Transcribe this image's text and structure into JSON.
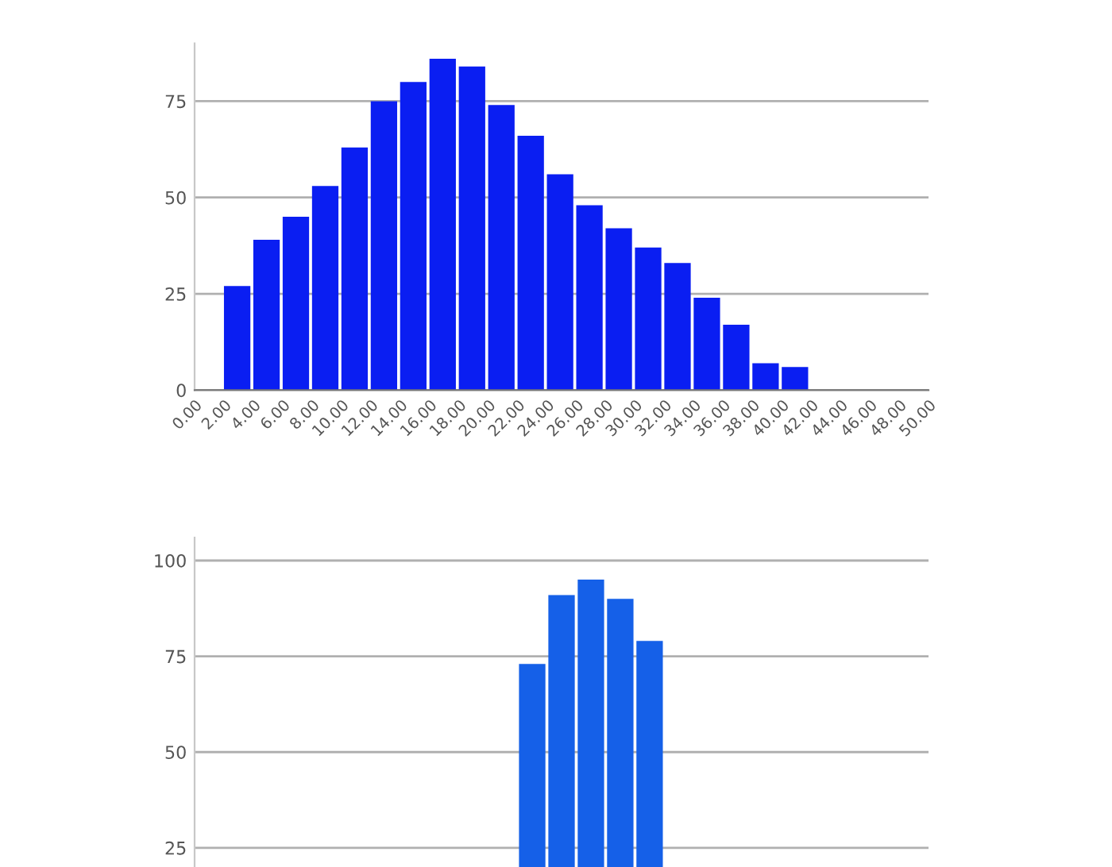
{
  "chart_data": [
    {
      "type": "histogram",
      "bins": [
        2,
        4,
        6,
        8,
        10,
        12,
        14,
        16,
        18,
        20,
        22,
        24,
        26,
        28,
        30,
        32,
        34,
        36,
        38,
        40,
        42
      ],
      "values": [
        27,
        39,
        45,
        53,
        63,
        75,
        80,
        86,
        84,
        74,
        66,
        56,
        48,
        42,
        37,
        33,
        24,
        17,
        7,
        6
      ],
      "color": "#0a1ef2",
      "xlim": [
        0,
        50
      ],
      "ylim": [
        0,
        90
      ],
      "xticks": [
        {
          "value": 0,
          "label": "0.00"
        },
        {
          "value": 2,
          "label": "2.00"
        },
        {
          "value": 4,
          "label": "4.00"
        },
        {
          "value": 6,
          "label": "6.00"
        },
        {
          "value": 8,
          "label": "8.00"
        },
        {
          "value": 10,
          "label": "10.00"
        },
        {
          "value": 12,
          "label": "12.00"
        },
        {
          "value": 14,
          "label": "14.00"
        },
        {
          "value": 16,
          "label": "16.00"
        },
        {
          "value": 18,
          "label": "18.00"
        },
        {
          "value": 20,
          "label": "20.00"
        },
        {
          "value": 22,
          "label": "22.00"
        },
        {
          "value": 24,
          "label": "24.00"
        },
        {
          "value": 26,
          "label": "26.00"
        },
        {
          "value": 28,
          "label": "28.00"
        },
        {
          "value": 30,
          "label": "30.00"
        },
        {
          "value": 32,
          "label": "32.00"
        },
        {
          "value": 34,
          "label": "34.00"
        },
        {
          "value": 36,
          "label": "36.00"
        },
        {
          "value": 38,
          "label": "38.00"
        },
        {
          "value": 40,
          "label": "40.00"
        },
        {
          "value": 42,
          "label": "42.00"
        },
        {
          "value": 44,
          "label": "44.00"
        },
        {
          "value": 46,
          "label": "46.00"
        },
        {
          "value": 48,
          "label": "48.00"
        },
        {
          "value": 50,
          "label": "50.00"
        }
      ],
      "yticks": [
        0,
        25,
        50,
        75
      ],
      "grid": "y"
    },
    {
      "type": "bar",
      "categories": [
        null,
        null,
        null,
        null,
        null,
        null,
        null,
        null,
        null,
        null,
        null,
        null,
        null,
        null,
        null,
        null,
        null,
        null,
        null,
        null,
        null,
        null,
        null,
        null,
        null
      ],
      "values": [
        null,
        null,
        null,
        null,
        null,
        null,
        null,
        null,
        null,
        null,
        null,
        73,
        91,
        95,
        90,
        79,
        null,
        null,
        null,
        null,
        null,
        null,
        null,
        null,
        null
      ],
      "color": "#1560e8",
      "ylim": [
        20,
        106
      ],
      "yticks": [
        25,
        50,
        75,
        100
      ],
      "grid": "y",
      "tick_labels": "y"
    }
  ]
}
